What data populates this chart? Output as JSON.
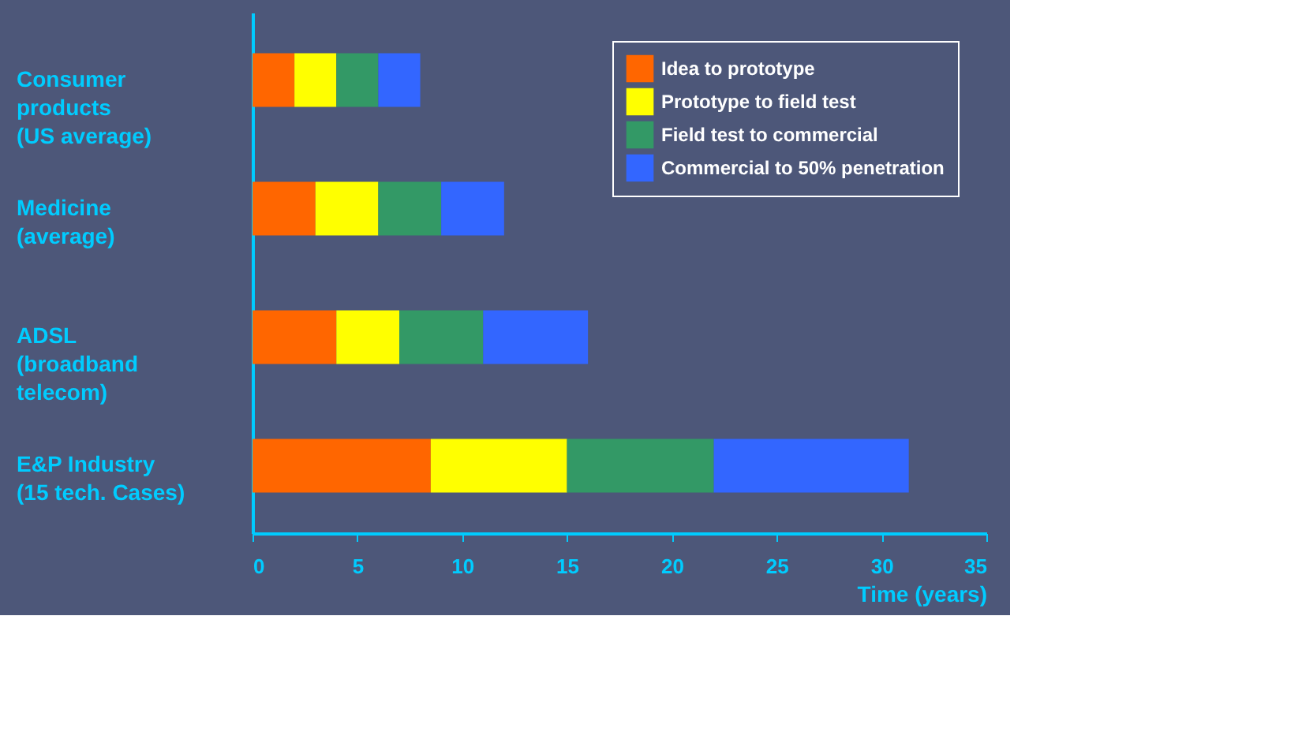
{
  "chart_data": {
    "type": "bar",
    "orientation": "horizontal",
    "stacked": true,
    "categories": [
      "Consumer\nproducts\n(US average)",
      "Medicine\n(average)",
      "ADSL\n(broadband\ntelecom)",
      "E&P Industry\n(15 tech. Cases)"
    ],
    "series": [
      {
        "name": "Idea to prototype",
        "color": "#ff6600",
        "values": [
          2,
          3,
          4,
          8.5
        ]
      },
      {
        "name": "Prototype to field test",
        "color": "#ffff00",
        "values": [
          2,
          3,
          3,
          6.5
        ]
      },
      {
        "name": "Field test to commercial",
        "color": "#339966",
        "values": [
          2,
          3,
          4,
          7
        ]
      },
      {
        "name": "Commercial to 50% penetration",
        "color": "#3366ff",
        "values": [
          2,
          3,
          5,
          9.3
        ]
      }
    ],
    "xlabel": "Time (years)",
    "xlim": [
      0,
      35
    ],
    "xticks": [
      0,
      5,
      10,
      15,
      20,
      25,
      30,
      35
    ],
    "grid": false,
    "legend": "top right"
  }
}
